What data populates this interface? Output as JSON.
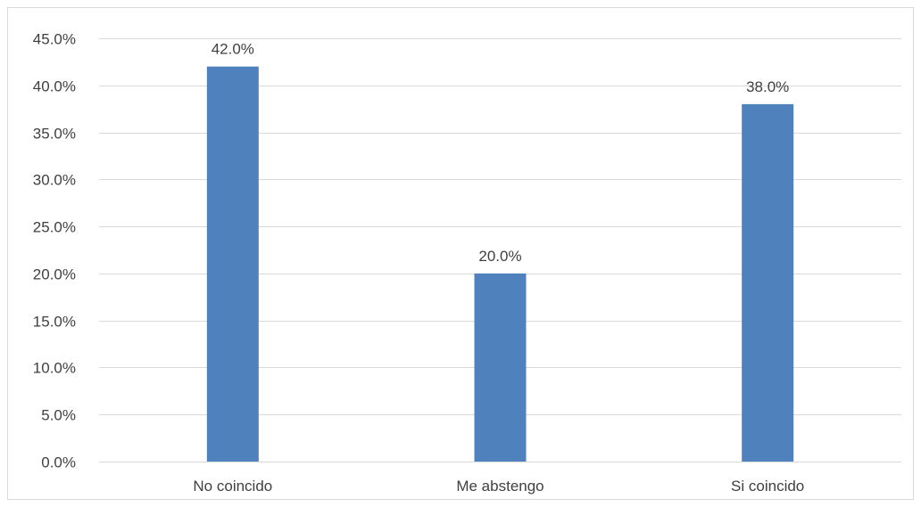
{
  "chart_data": {
    "type": "bar",
    "categories": [
      "No coincido",
      "Me abstengo",
      "Si coincido"
    ],
    "values": [
      42.0,
      20.0,
      38.0
    ],
    "data_labels": [
      "42.0%",
      "20.0%",
      "38.0%"
    ],
    "y_ticks": [
      "0.0%",
      "5.0%",
      "10.0%",
      "15.0%",
      "20.0%",
      "25.0%",
      "30.0%",
      "35.0%",
      "40.0%",
      "45.0%"
    ],
    "ylim": [
      0,
      45
    ],
    "y_tick_step": 5,
    "grid": true,
    "legend": "none",
    "bar_color": "#4f81bd",
    "grid_color": "#d9d9d9",
    "text_color": "#404040"
  }
}
